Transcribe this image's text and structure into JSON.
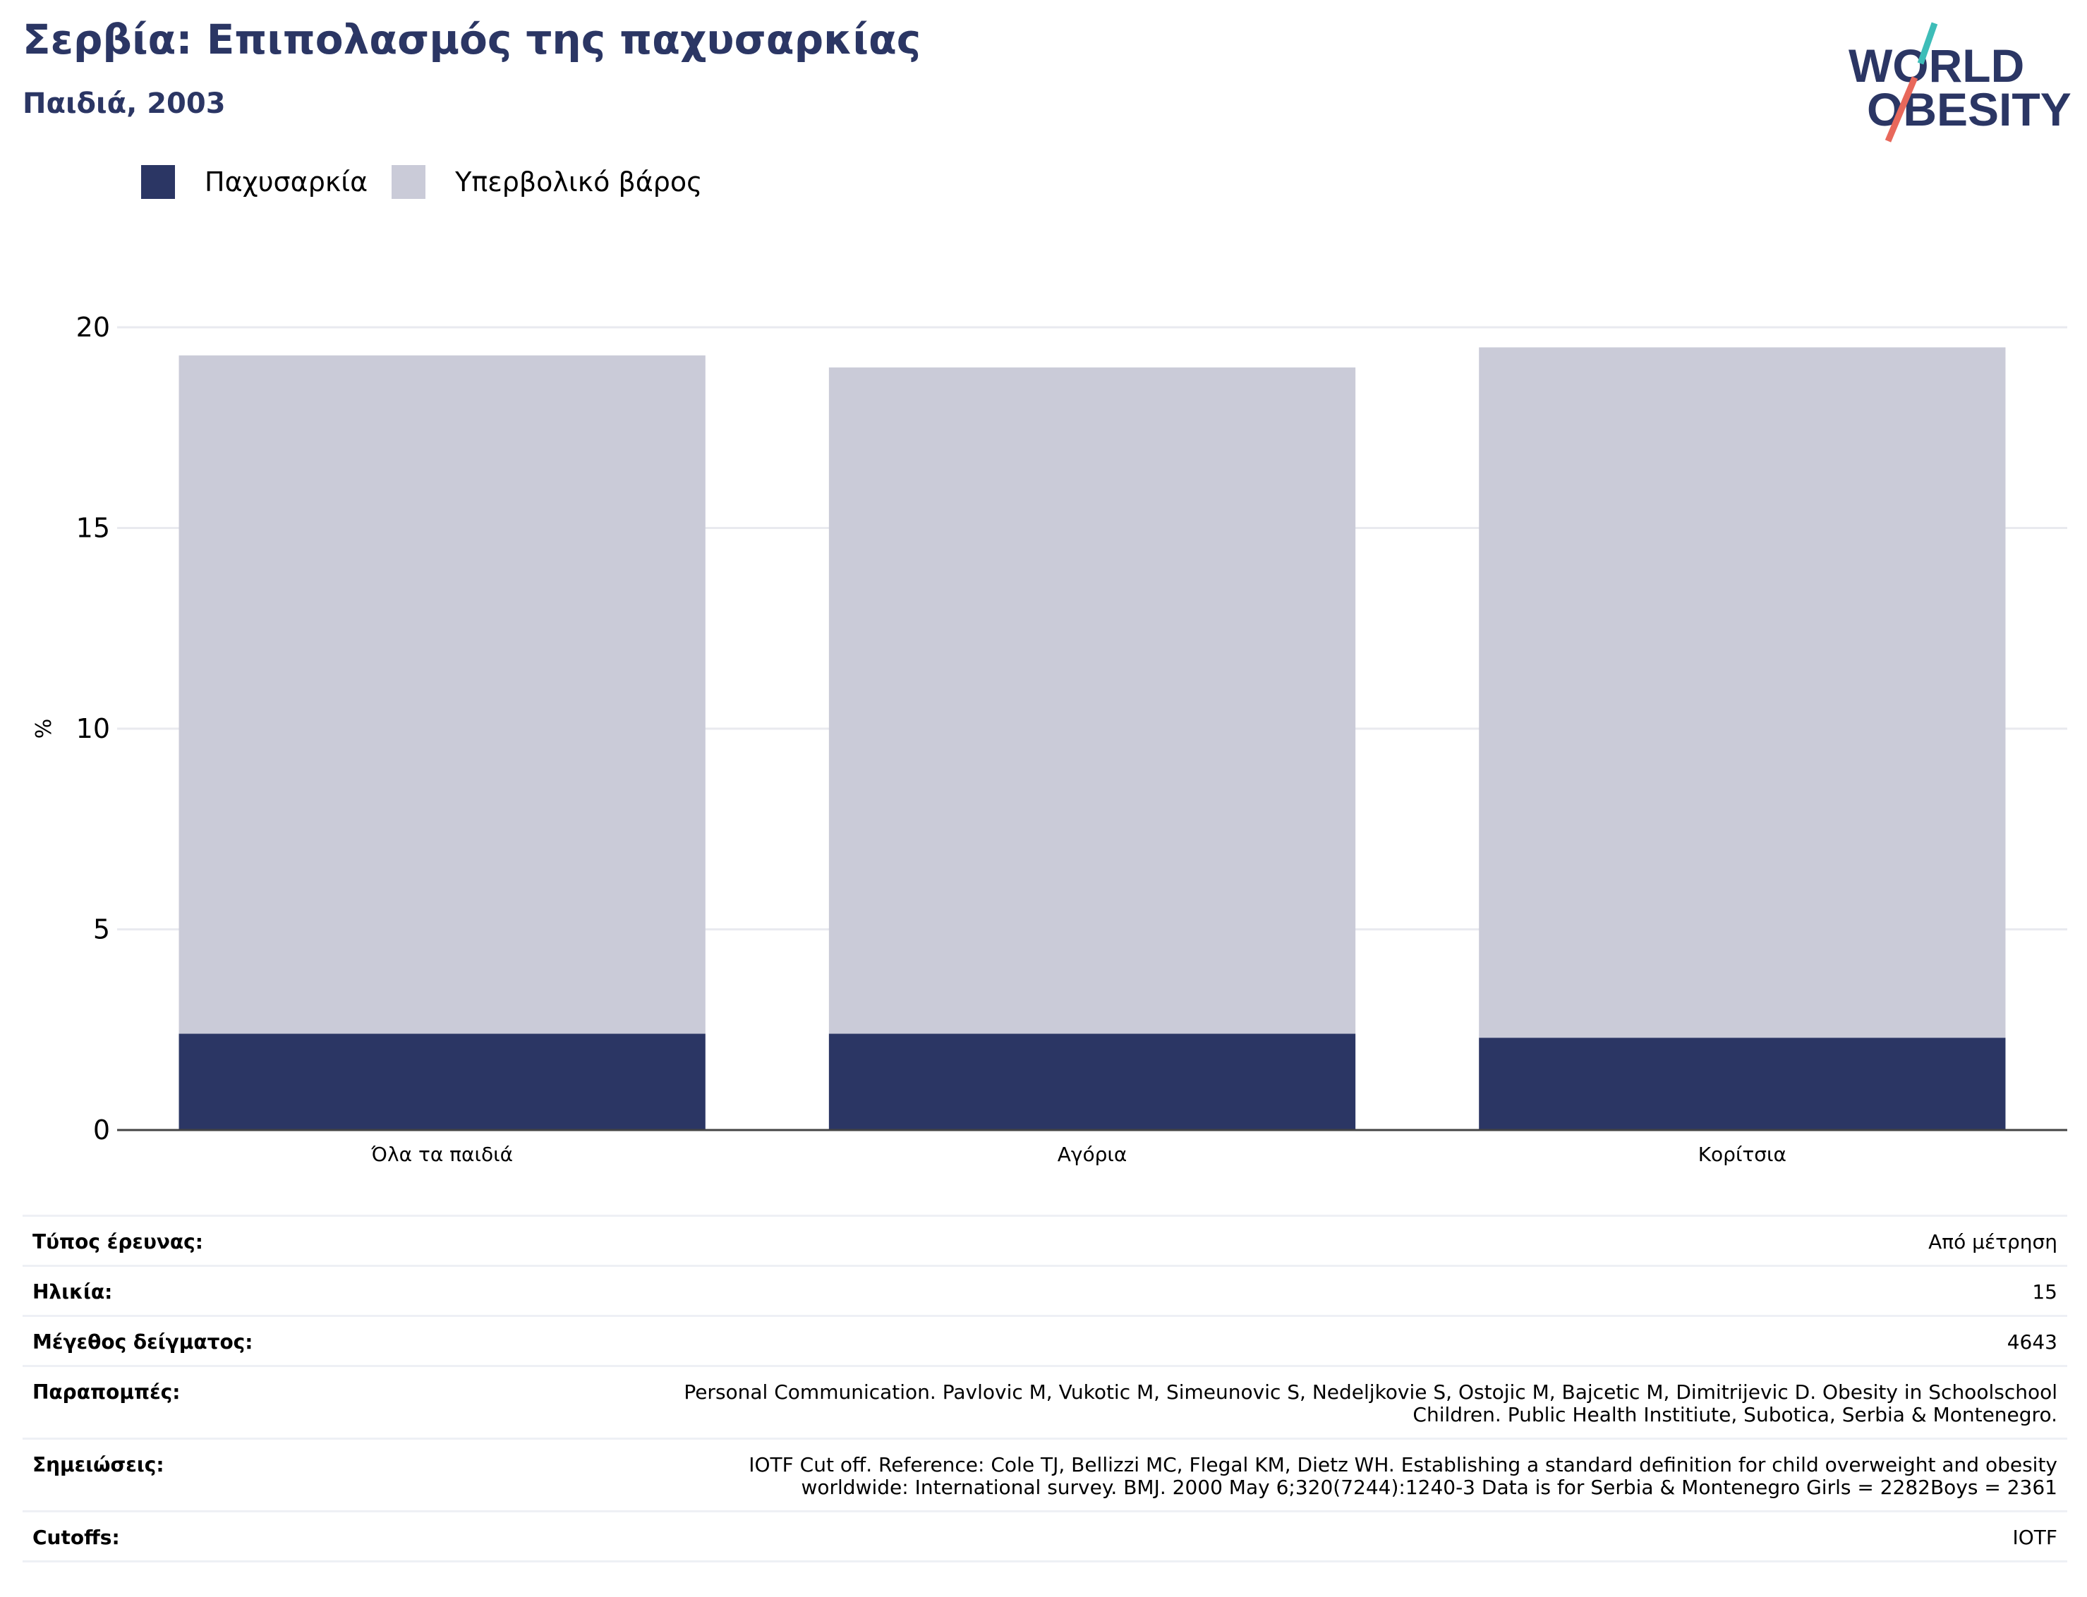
{
  "header": {
    "title": "Σερβία: Επιπολασμός της παχυσαρκίας",
    "subtitle": "Παιδιά, 2003"
  },
  "logo": {
    "line1": "WORLD",
    "line2": "OBESITY"
  },
  "colors": {
    "obesity": "#2b3664",
    "overweight": "#cacbd8",
    "title": "#2b3664",
    "logo_teal": "#3ebdb8",
    "logo_coral": "#e8685b"
  },
  "chart_data": {
    "type": "bar",
    "stacked": true,
    "categories": [
      "Όλα τα παιδιά",
      "Αγόρια",
      "Κορίτσια"
    ],
    "series": [
      {
        "name": "Παχυσαρκία",
        "values": [
          2.4,
          2.4,
          2.3
        ]
      },
      {
        "name": "Υπερβολικό βάρος",
        "values": [
          16.9,
          16.6,
          17.2
        ]
      }
    ],
    "ylabel": "%",
    "ylim": [
      0,
      20
    ],
    "yticks": [
      0,
      5,
      10,
      15,
      20
    ],
    "grid": true,
    "legend": "top-left"
  },
  "info": [
    {
      "key": "Τύπος έρευνας:",
      "value": [
        "Από μέτρηση"
      ]
    },
    {
      "key": "Ηλικία:",
      "value": [
        "15"
      ]
    },
    {
      "key": "Μέγεθος δείγματος:",
      "value": [
        "4643"
      ]
    },
    {
      "key": "Παραπομπές:",
      "value": [
        "Personal Communication. Pavlovic M, Vukotic M, Simeunovic S, Nedeljkovie S, Ostojic M, Bajcetic M, Dimitrijevic D. Obesity in Schoolschool",
        "Children. Public Health Institiute, Subotica, Serbia & Montenegro."
      ]
    },
    {
      "key": "Σημειώσεις:",
      "value": [
        "IOTF Cut off. Reference: Cole TJ, Bellizzi MC, Flegal KM, Dietz WH. Establishing a standard definition for child overweight and obesity",
        "worldwide: International survey. BMJ. 2000 May 6;320(7244):1240-3 Data is for Serbia & Montenegro Girls = 2282Boys = 2361"
      ]
    },
    {
      "key": "Cutoffs:",
      "value": [
        "IOTF"
      ]
    }
  ]
}
